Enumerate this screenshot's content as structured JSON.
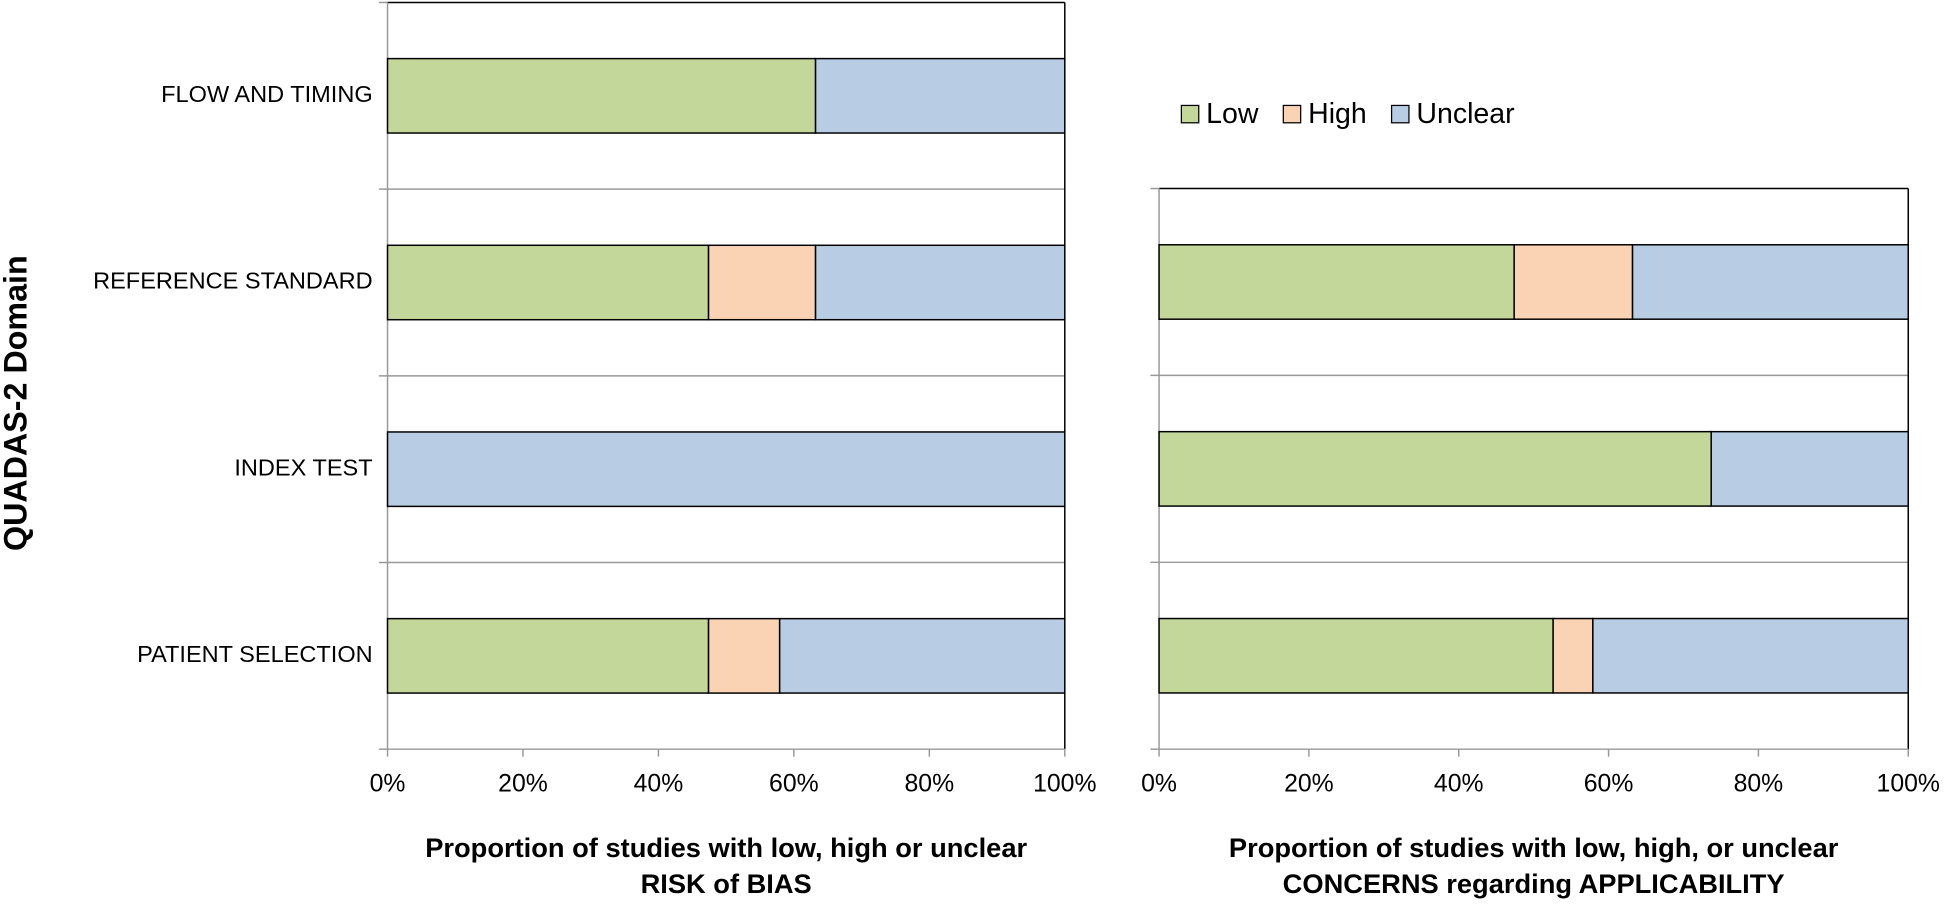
{
  "chart_data": [
    {
      "type": "stacked-barh",
      "ylabel": "QUADAS-2 Domain",
      "xlabel": [
        "Proportion of studies with low, high or unclear",
        "RISK of BIAS"
      ],
      "categories": [
        "FLOW AND TIMING",
        "REFERENCE STANDARD",
        "INDEX TEST",
        "PATIENT SELECTION"
      ],
      "series": [
        {
          "color": "#c4d79b",
          "values": [
            63.2,
            47.4,
            0,
            47.4
          ]
        },
        {
          "color": "#fad3b5",
          "values": [
            0,
            15.8,
            0,
            10.5
          ]
        },
        {
          "color": "#b8cce4",
          "values": [
            36.8,
            36.8,
            100,
            42.1
          ]
        }
      ],
      "xlim": [
        0,
        100
      ],
      "xticks": [
        {
          "value": 0,
          "label": "0%"
        },
        {
          "value": 20,
          "label": "20%"
        },
        {
          "value": 40,
          "label": "40%"
        },
        {
          "value": 60,
          "label": "60%"
        },
        {
          "value": 80,
          "label": "80%"
        },
        {
          "value": 100,
          "label": "100%"
        }
      ],
      "grid": true
    },
    {
      "type": "stacked-barh",
      "xlabel": [
        "Proportion of studies with low, high, or unclear",
        "CONCERNS regarding APPLICABILITY"
      ],
      "series": [
        {
          "name": "Low",
          "color": "#c4d79b",
          "values": [
            47.4,
            73.7,
            52.6
          ]
        },
        {
          "name": "High",
          "color": "#fad3b5",
          "values": [
            15.8,
            0,
            5.3
          ]
        },
        {
          "name": "Unclear",
          "color": "#b8cce4",
          "values": [
            36.8,
            26.3,
            42.1
          ]
        }
      ],
      "xlim": [
        0,
        100
      ],
      "xticks": [
        {
          "value": 0,
          "label": "0%"
        },
        {
          "value": 20,
          "label": "20%"
        },
        {
          "value": 40,
          "label": "40%"
        },
        {
          "value": 60,
          "label": "60%"
        },
        {
          "value": 80,
          "label": "80%"
        },
        {
          "value": 100,
          "label": "100%"
        }
      ],
      "grid": true,
      "legend": "top"
    }
  ]
}
